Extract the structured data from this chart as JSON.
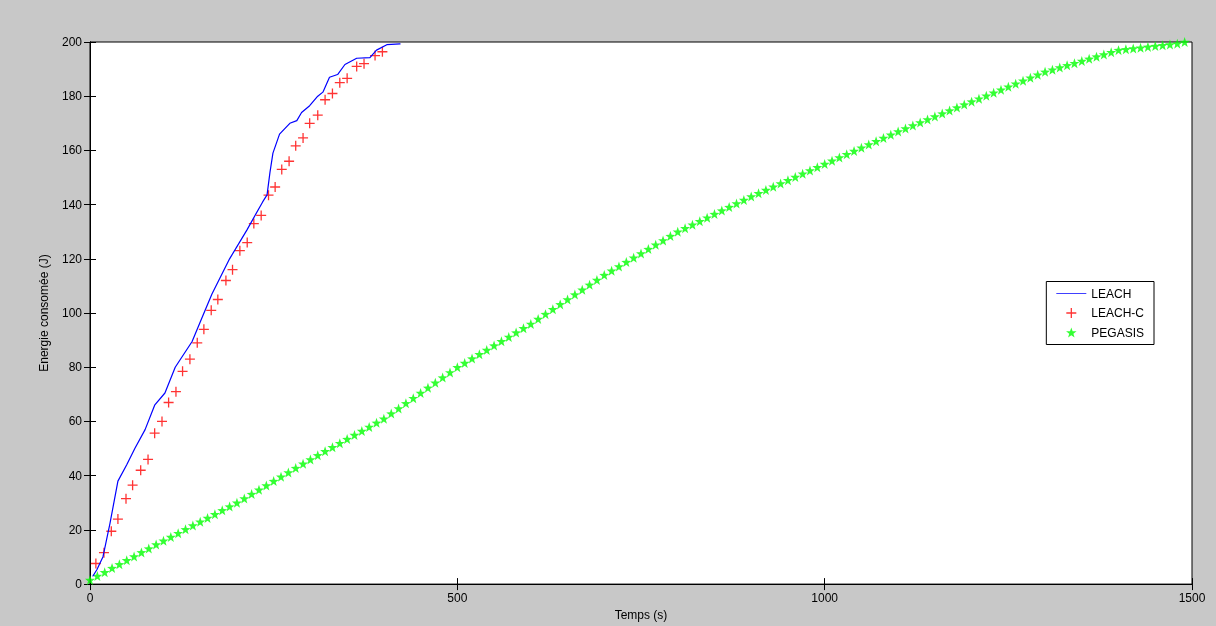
{
  "chart_data": {
    "type": "line",
    "xlabel": "Temps (s)",
    "ylabel": "Energie consomée (J)",
    "xlim": [
      0,
      1500
    ],
    "xticks": [
      0,
      500,
      1000,
      1500
    ],
    "ylim": [
      0,
      200
    ],
    "yticks": [
      0,
      20,
      40,
      60,
      80,
      100,
      120,
      140,
      160,
      180,
      200
    ],
    "grid": false,
    "legend": "right",
    "series": [
      {
        "name": "LEACH",
        "color": "#0000ff",
        "marker": "none",
        "line_style": "solid",
        "x": [
          4,
          9.5,
          17.7,
          27.2,
          38,
          50,
          61,
          75,
          88,
          102,
          116,
          139,
          152,
          166,
          190,
          213.5,
          235,
          241,
          245,
          249,
          258,
          272,
          281.5,
          288,
          299,
          310,
          317,
          326,
          337,
          347,
          363,
          381,
          390,
          404,
          422
        ],
        "values": [
          3,
          5.4,
          10.1,
          22.4,
          38,
          44,
          50,
          57,
          66,
          70.5,
          80,
          89.5,
          98,
          107,
          120,
          130.6,
          141,
          143.6,
          152,
          159,
          166,
          170,
          171,
          174,
          176.5,
          180,
          181.5,
          187,
          188,
          191.7,
          194,
          194.2,
          197,
          199,
          199.3
        ]
      },
      {
        "name": "LEACH-C",
        "type": "scatter",
        "color": "#ff0000",
        "marker": "cross",
        "x": [
          8,
          19,
          29,
          38,
          49,
          58,
          69,
          79,
          88,
          98,
          107,
          117,
          126,
          136,
          146,
          155,
          165,
          174,
          185,
          194,
          204,
          214,
          223,
          233,
          243,
          252,
          261,
          271,
          280,
          290,
          299,
          310,
          320,
          330,
          340,
          350,
          363,
          373,
          388,
          398
        ],
        "values": [
          7.6,
          11.6,
          19.5,
          24,
          31.5,
          36.5,
          42,
          46,
          55.7,
          60,
          67,
          71,
          78.5,
          83,
          89,
          94,
          101,
          105,
          112,
          116,
          123,
          126,
          133,
          136,
          143.5,
          146.5,
          153,
          156,
          161.7,
          164.6,
          170,
          173,
          178.7,
          181,
          185,
          186.6,
          191,
          192,
          195,
          196.4
        ]
      },
      {
        "name": "PEGASIS",
        "type": "scatter",
        "color": "#00ff00",
        "marker": "star",
        "x": [
          0,
          10,
          20,
          30,
          40,
          50,
          60,
          70,
          80,
          90,
          100,
          110,
          120,
          130,
          140,
          150,
          160,
          170,
          180,
          190,
          200,
          210,
          220,
          230,
          240,
          250,
          260,
          270,
          280,
          290,
          300,
          310,
          320,
          330,
          340,
          350,
          360,
          370,
          380,
          390,
          400,
          410,
          420,
          430,
          440,
          450,
          460,
          470,
          480,
          490,
          500,
          510,
          520,
          530,
          540,
          550,
          560,
          570,
          580,
          590,
          600,
          610,
          620,
          630,
          640,
          650,
          660,
          670,
          680,
          690,
          700,
          710,
          720,
          730,
          740,
          750,
          760,
          770,
          780,
          790,
          800,
          810,
          820,
          830,
          840,
          850,
          860,
          870,
          880,
          890,
          900,
          910,
          920,
          930,
          940,
          950,
          960,
          970,
          980,
          990,
          1000,
          1010,
          1020,
          1030,
          1040,
          1050,
          1060,
          1070,
          1080,
          1090,
          1100,
          1110,
          1120,
          1130,
          1140,
          1150,
          1160,
          1170,
          1180,
          1190,
          1200,
          1210,
          1220,
          1230,
          1240,
          1250,
          1260,
          1270,
          1280,
          1290,
          1300,
          1310,
          1320,
          1330,
          1340,
          1350,
          1360,
          1370,
          1380,
          1390,
          1400,
          1410,
          1420,
          1430,
          1440,
          1450,
          1460,
          1470,
          1480,
          1490
        ],
        "values": [
          1.5,
          3,
          4.4,
          5.9,
          7.3,
          8.8,
          10.2,
          11.7,
          13.1,
          14.6,
          16,
          17.4,
          18.8,
          20.2,
          21.6,
          23,
          24.4,
          25.8,
          27.2,
          28.6,
          30,
          31.6,
          33.2,
          34.8,
          36.4,
          38,
          39.6,
          41.2,
          42.8,
          44.4,
          46,
          47.5,
          49,
          50.5,
          52,
          53.5,
          55,
          56.5,
          58,
          59.5,
          61,
          62.9,
          64.8,
          66.7,
          68.6,
          70.5,
          72.4,
          74.3,
          76.2,
          78.1,
          80,
          81.6,
          83.2,
          84.8,
          86.4,
          88,
          89.6,
          91.2,
          92.8,
          94.4,
          96,
          97.8,
          99.6,
          101.4,
          103.2,
          105,
          106.8,
          108.6,
          110.4,
          112.2,
          114,
          115.6,
          117.2,
          118.8,
          120.4,
          122,
          123.6,
          125.2,
          126.8,
          128.4,
          130,
          131.3,
          132.6,
          133.9,
          135.2,
          136.5,
          137.8,
          139.1,
          140.4,
          141.7,
          143,
          144.2,
          145.4,
          146.6,
          147.8,
          149,
          150.2,
          151.4,
          152.6,
          153.8,
          155,
          156.2,
          157.4,
          158.6,
          159.8,
          161,
          162.2,
          163.4,
          164.6,
          165.8,
          167,
          168.1,
          169.2,
          170.3,
          171.4,
          172.5,
          173.6,
          174.7,
          175.8,
          176.9,
          178,
          179.1,
          180.2,
          181.3,
          182.4,
          183.5,
          184.6,
          185.7,
          186.8,
          187.9,
          189,
          189.8,
          190.6,
          191.4,
          192.2,
          193,
          193.8,
          194.6,
          195.4,
          196.2,
          197,
          197.3,
          197.6,
          197.9,
          198.2,
          198.5,
          198.8,
          199.1,
          199.4,
          200
        ]
      }
    ]
  }
}
